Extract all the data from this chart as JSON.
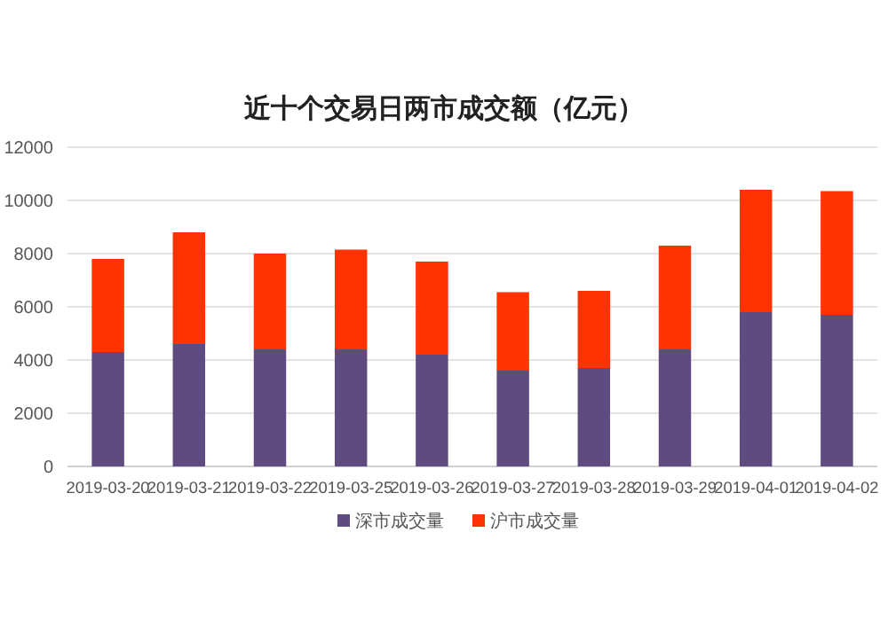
{
  "chart_data": {
    "type": "bar",
    "title": "近十个交易日两市成交额（亿元）",
    "stacked": true,
    "categories": [
      "2019-03-20",
      "2019-03-21",
      "2019-03-22",
      "2019-03-25",
      "2019-03-26",
      "2019-03-27",
      "2019-03-28",
      "2019-03-29",
      "2019-04-01",
      "2019-04-02"
    ],
    "series": [
      {
        "name": "深市成交量",
        "color": "#5f4b7f",
        "values": [
          4300,
          4600,
          4400,
          4400,
          4200,
          3600,
          3700,
          4400,
          5800,
          5700
        ]
      },
      {
        "name": "沪市成交量",
        "color": "#ff3300",
        "values": [
          3500,
          4200,
          3600,
          3750,
          3500,
          2950,
          2900,
          3900,
          4600,
          4650
        ]
      }
    ],
    "ylim": [
      0,
      12000
    ],
    "yticks": [
      0,
      2000,
      4000,
      6000,
      8000,
      10000,
      12000
    ],
    "grid": "y",
    "legend": "bottom"
  }
}
